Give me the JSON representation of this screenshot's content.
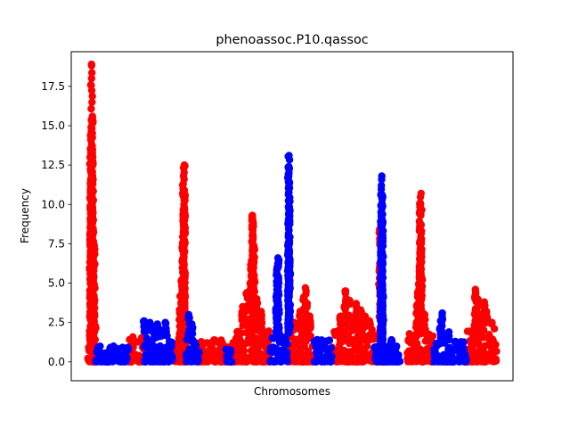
{
  "chart_data": {
    "type": "scatter",
    "title": "phenoassoc.P10.qassoc",
    "xlabel": "Chromosomes",
    "ylabel": "Frequency",
    "ylim": [
      -1.2,
      19.7
    ],
    "xlim": [
      0,
      100
    ],
    "yticks": [
      "0.0",
      "2.5",
      "5.0",
      "7.5",
      "10.0",
      "12.5",
      "15.0",
      "17.5"
    ],
    "ytick_values": [
      0,
      2.5,
      5,
      7.5,
      10,
      12.5,
      15,
      17.5
    ],
    "x_ticks_shown": false,
    "grid": false,
    "legend": "none",
    "colors": [
      "#ff0000",
      "#0000ff"
    ],
    "series": [
      {
        "color": "#ff0000",
        "segments": [
          {
            "x0": 3.5,
            "x1": 6.0,
            "peak_x": 4.6,
            "peak": 18.9,
            "top": [
              [
                4.6,
                18.9
              ],
              [
                4.6,
                18.0
              ],
              [
                4.8,
                15.6
              ],
              [
                4.5,
                14.9
              ],
              [
                4.6,
                14.2
              ],
              [
                4.4,
                13.5
              ],
              [
                4.7,
                12.8
              ],
              [
                4.5,
                12.0
              ],
              [
                4.4,
                11.2
              ],
              [
                4.6,
                10.5
              ],
              [
                4.8,
                9.8
              ],
              [
                5.0,
                9.0
              ],
              [
                4.3,
                8.2
              ],
              [
                5.2,
                7.4
              ],
              [
                4.4,
                5.8
              ],
              [
                5.0,
                5.2
              ],
              [
                5.1,
                3.9
              ],
              [
                5.4,
                2.3
              ]
            ],
            "base": 1.2
          },
          {
            "x0": 13.0,
            "x1": 16.5,
            "peak_x": 13.5,
            "peak": 2.4,
            "top": [],
            "base": 1.6
          },
          {
            "x0": 23.0,
            "x1": 26.5,
            "peak_x": 25.5,
            "peak": 12.5,
            "top": [
              [
                25.6,
                12.5
              ],
              [
                25.4,
                11.8
              ],
              [
                25.6,
                10.9
              ],
              [
                25.5,
                10.0
              ],
              [
                25.3,
                9.4
              ],
              [
                25.6,
                8.7
              ],
              [
                25.4,
                7.6
              ],
              [
                25.3,
                6.2
              ],
              [
                25.0,
                5.2
              ],
              [
                24.8,
                4.2
              ],
              [
                24.5,
                3.3
              ]
            ],
            "base": 1.5
          },
          {
            "x0": 29.0,
            "x1": 35.5,
            "peak_x": 32.0,
            "peak": 1.7,
            "top": [],
            "base": 1.4
          },
          {
            "x0": 36.5,
            "x1": 45.0,
            "peak_x": 41.0,
            "peak": 9.3,
            "top": [
              [
                41.0,
                9.3
              ],
              [
                41.2,
                8.8
              ],
              [
                41.0,
                8.0
              ],
              [
                41.3,
                7.4
              ],
              [
                41.1,
                6.8
              ],
              [
                40.8,
                6.2
              ],
              [
                41.4,
                5.5
              ],
              [
                40.5,
                5.0
              ],
              [
                39.8,
                4.4
              ],
              [
                42.0,
                4.0
              ],
              [
                38.8,
                3.5
              ],
              [
                43.0,
                3.2
              ]
            ],
            "base": 2.0
          },
          {
            "x0": 49.0,
            "x1": 55.0,
            "peak_x": 53.0,
            "peak": 4.7,
            "top": [
              [
                53.0,
                4.7
              ],
              [
                52.6,
                4.1
              ],
              [
                53.4,
                3.7
              ],
              [
                51.8,
                3.2
              ],
              [
                54.0,
                2.9
              ],
              [
                50.5,
                2.5
              ]
            ],
            "base": 2.0
          },
          {
            "x0": 59.0,
            "x1": 69.0,
            "peak_x": 64.0,
            "peak": 4.5,
            "top": [
              [
                62.0,
                4.5
              ],
              [
                63.0,
                3.9
              ],
              [
                64.5,
                3.7
              ],
              [
                65.5,
                3.3
              ],
              [
                66.5,
                2.9
              ],
              [
                67.5,
                2.6
              ],
              [
                61.0,
                2.9
              ]
            ],
            "base": 2.2
          },
          {
            "x0": 69.0,
            "x1": 71.0,
            "peak_x": 70.0,
            "peak": 8.4,
            "top": [
              [
                69.8,
                8.4
              ]
            ],
            "base": 0.5
          },
          {
            "x0": 76.0,
            "x1": 82.0,
            "peak_x": 79.0,
            "peak": 10.7,
            "top": [
              [
                79.2,
                10.7
              ],
              [
                79.0,
                10.1
              ],
              [
                79.1,
                9.3
              ],
              [
                78.9,
                8.6
              ],
              [
                79.2,
                7.7
              ],
              [
                79.0,
                6.8
              ],
              [
                78.8,
                6.0
              ],
              [
                79.3,
                5.2
              ],
              [
                78.6,
                4.5
              ],
              [
                78.2,
                3.6
              ],
              [
                80.0,
                3.0
              ]
            ],
            "base": 1.9
          },
          {
            "x0": 89.5,
            "x1": 96.5,
            "peak_x": 91.5,
            "peak": 4.6,
            "top": [
              [
                91.5,
                4.6
              ],
              [
                92.0,
                4.0
              ],
              [
                93.5,
                3.8
              ],
              [
                94.0,
                3.2
              ],
              [
                92.8,
                2.8
              ],
              [
                95.2,
                2.5
              ]
            ],
            "base": 2.4
          }
        ]
      },
      {
        "color": "#0000ff",
        "segments": [
          {
            "x0": 5.5,
            "x1": 13.0,
            "peak_x": 8.0,
            "peak": 1.1,
            "top": [],
            "base": 1.0
          },
          {
            "x0": 16.5,
            "x1": 23.0,
            "peak_x": 18.0,
            "peak": 2.6,
            "top": [
              [
                16.5,
                2.6
              ],
              [
                17.8,
                2.5
              ],
              [
                19.5,
                2.4
              ],
              [
                21.3,
                2.5
              ]
            ],
            "base": 1.9
          },
          {
            "x0": 26.0,
            "x1": 29.0,
            "peak_x": 27.0,
            "peak": 3.0,
            "top": [
              [
                26.6,
                3.0
              ],
              [
                27.3,
                2.4
              ]
            ],
            "base": 1.5
          },
          {
            "x0": 35.0,
            "x1": 36.5,
            "peak_x": 35.5,
            "peak": 1.0,
            "top": [],
            "base": 0.9
          },
          {
            "x0": 45.0,
            "x1": 49.0,
            "peak_x": 46.0,
            "peak": 13.1,
            "top": [
              [
                49.3,
                13.1
              ],
              [
                49.3,
                12.2
              ],
              [
                49.2,
                11.9
              ],
              [
                49.3,
                11.2
              ],
              [
                49.3,
                9.8
              ],
              [
                49.2,
                7.9
              ],
              [
                49.4,
                5.9
              ],
              [
                49.3,
                5.6
              ],
              [
                49.3,
                3.2
              ],
              [
                46.8,
                6.6
              ],
              [
                46.6,
                6.0
              ],
              [
                46.9,
                5.4
              ],
              [
                46.7,
                4.8
              ],
              [
                46.5,
                4.3
              ],
              [
                46.9,
                3.6
              ],
              [
                46.6,
                2.9
              ]
            ],
            "base": 1.8
          },
          {
            "x0": 55.0,
            "x1": 59.0,
            "peak_x": 57.0,
            "peak": 1.9,
            "top": [],
            "base": 1.5
          },
          {
            "x0": 68.5,
            "x1": 74.5,
            "peak_x": 70.3,
            "peak": 11.8,
            "top": [
              [
                70.3,
                11.8
              ],
              [
                70.2,
                11.2
              ],
              [
                70.4,
                10.6
              ],
              [
                70.3,
                10.0
              ],
              [
                70.2,
                9.4
              ],
              [
                70.5,
                8.8
              ],
              [
                70.3,
                8.2
              ],
              [
                70.2,
                7.4
              ],
              [
                70.4,
                6.6
              ],
              [
                70.3,
                6.0
              ],
              [
                70.1,
                5.2
              ],
              [
                70.4,
                4.6
              ],
              [
                70.2,
                3.8
              ],
              [
                70.5,
                3.0
              ],
              [
                72.5,
                1.4
              ]
            ],
            "base": 1.0
          },
          {
            "x0": 82.0,
            "x1": 89.5,
            "peak_x": 84.0,
            "peak": 3.1,
            "top": [
              [
                84.0,
                3.1
              ],
              [
                83.6,
                2.6
              ],
              [
                85.5,
                1.9
              ],
              [
                87.0,
                1.2
              ]
            ],
            "base": 1.3
          }
        ]
      }
    ]
  }
}
